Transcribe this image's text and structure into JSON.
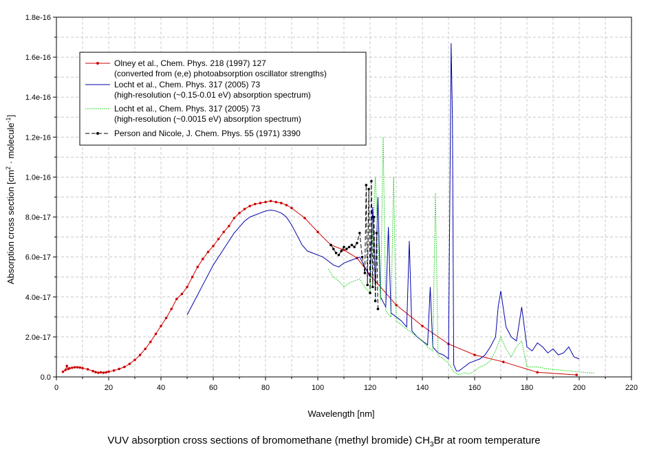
{
  "caption": {
    "prefix": "VUV absorption cross sections of bromomethane (methyl bromide) CH",
    "sub": "3",
    "suffix": "Br at room temperature"
  },
  "chart_data": {
    "type": "line",
    "xlabel": "Wavelength [nm]",
    "ylabel_main": "Absorption cross section [cm",
    "ylabel_sup1": "2",
    "ylabel_mid": " · molecule",
    "ylabel_sup2": "-1",
    "ylabel_end": "]",
    "xlim": [
      0,
      220
    ],
    "ylim": [
      0,
      1.8e-16
    ],
    "x_ticks": [
      0,
      20,
      40,
      60,
      80,
      100,
      120,
      140,
      160,
      180,
      200,
      220
    ],
    "x_tick_labels": [
      "0",
      "20",
      "40",
      "60",
      "80",
      "100",
      "120",
      "140",
      "160",
      "180",
      "200",
      "220"
    ],
    "y_ticks": [
      0,
      2e-17,
      4e-17,
      6e-17,
      8e-17,
      1e-16,
      1.2e-16,
      1.4e-16,
      1.6e-16,
      1.8e-16
    ],
    "y_tick_labels": [
      "0.0",
      "2.0e-17",
      "4.0e-17",
      "6.0e-17",
      "8.0e-17",
      "1.0e-16",
      "1.2e-16",
      "1.4e-16",
      "1.6e-16",
      "1.8e-16"
    ],
    "grid": true,
    "legend_position": "top-left",
    "series": [
      {
        "name": "Olney et al., Chem. Phys. 218 (1997) 127",
        "name2": "(converted from (e,e) photoabsorption oscillator strengths)",
        "color": "#cc0000",
        "style": "solid-markers",
        "x": [
          2.5,
          3.5,
          4,
          4.5,
          5,
          6,
          7,
          8,
          9,
          10,
          12,
          14,
          15,
          16,
          17,
          18,
          19,
          20,
          22,
          24,
          26,
          28,
          30,
          32,
          34,
          36,
          38,
          40,
          42,
          44,
          46,
          48,
          50,
          52,
          54,
          56,
          58,
          60,
          62,
          64,
          66,
          68,
          70,
          72,
          74,
          76,
          78,
          80,
          82,
          84,
          86,
          88,
          90,
          95,
          100,
          105,
          110,
          115,
          120,
          130,
          140,
          150,
          160,
          171,
          184,
          199
        ],
        "y": [
          2.6e-18,
          3.5e-18,
          5.5e-18,
          4e-18,
          4.3e-18,
          4.6e-18,
          4.8e-18,
          4.8e-18,
          4.7e-18,
          4.4e-18,
          3.8e-18,
          2.9e-18,
          2.4e-18,
          2.1e-18,
          2.3e-18,
          2.1e-18,
          2.3e-18,
          2.6e-18,
          3.2e-18,
          4e-18,
          5e-18,
          6.5e-18,
          8.5e-18,
          1.1e-17,
          1.4e-17,
          1.75e-17,
          2.15e-17,
          2.55e-17,
          2.95e-17,
          3.4e-17,
          3.9e-17,
          4.15e-17,
          4.5e-17,
          5e-17,
          5.5e-17,
          5.9e-17,
          6.25e-17,
          6.55e-17,
          6.9e-17,
          7.25e-17,
          7.55e-17,
          7.95e-17,
          8.2e-17,
          8.4e-17,
          8.55e-17,
          8.65e-17,
          8.7e-17,
          8.75e-17,
          8.8e-17,
          8.75e-17,
          8.7e-17,
          8.6e-17,
          8.45e-17,
          7.95e-17,
          7.25e-17,
          6.6e-17,
          6.35e-17,
          5.95e-17,
          5.1e-17,
          3.6e-17,
          2.55e-17,
          1.65e-17,
          1.1e-17,
          7.5e-18,
          2.3e-18,
          1e-18
        ]
      },
      {
        "name": "Locht et al., Chem. Phys. 317 (2005) 73",
        "name2": "(high-resolution (~0.15-0.01 eV) absorption spectrum)",
        "color": "#0000aa",
        "style": "solid",
        "x": [
          50,
          52,
          54,
          56,
          58,
          60,
          62,
          64,
          66,
          68,
          70,
          72,
          74,
          76,
          78,
          80,
          82,
          84,
          86,
          88,
          90,
          92,
          94,
          96,
          98,
          100,
          102,
          104,
          106,
          108,
          110,
          112,
          114,
          116,
          118,
          120,
          121,
          122,
          123,
          124,
          126,
          127,
          128,
          130,
          132,
          134,
          135,
          136,
          138,
          140,
          142,
          143,
          144,
          146,
          148,
          150,
          151,
          151.5,
          152,
          153,
          154,
          156,
          158,
          160,
          162,
          164,
          166,
          168,
          169,
          170,
          172,
          174,
          176,
          178,
          180,
          182,
          184,
          186,
          188,
          190,
          192,
          194,
          196,
          198,
          200
        ],
        "y": [
          3.1e-17,
          3.6e-17,
          4.1e-17,
          4.6e-17,
          5.1e-17,
          5.6e-17,
          6e-17,
          6.4e-17,
          6.8e-17,
          7.2e-17,
          7.5e-17,
          7.8e-17,
          8e-17,
          8.1e-17,
          8.2e-17,
          8.3e-17,
          8.35e-17,
          8.3e-17,
          8.2e-17,
          8e-17,
          7.6e-17,
          7.1e-17,
          6.6e-17,
          6.3e-17,
          6.2e-17,
          6.1e-17,
          6e-17,
          5.8e-17,
          5.6e-17,
          5.5e-17,
          5.7e-17,
          5.8e-17,
          5.9e-17,
          6e-17,
          5.5e-17,
          5e-17,
          8.5e-17,
          4.5e-17,
          9e-17,
          4e-17,
          3.5e-17,
          7.5e-17,
          3.2e-17,
          3e-17,
          2.8e-17,
          2.5e-17,
          6.8e-17,
          2.3e-17,
          2e-17,
          1.8e-17,
          1.6e-17,
          4.5e-17,
          1.5e-17,
          1.2e-17,
          1.1e-17,
          9e-18,
          1.67e-16,
          1.3e-16,
          6e-18,
          3e-18,
          3e-18,
          5e-18,
          7e-18,
          8e-18,
          9e-18,
          1.1e-17,
          1.5e-17,
          2e-17,
          3.5e-17,
          4.3e-17,
          2.5e-17,
          2e-17,
          1.8e-17,
          3.5e-17,
          1.5e-17,
          1.3e-17,
          1.7e-17,
          1.5e-17,
          1.2e-17,
          1.4e-17,
          1.1e-17,
          1.2e-17,
          1.5e-17,
          1e-17,
          9e-18
        ]
      },
      {
        "name": "Locht et al., Chem. Phys. 317 (2005) 73",
        "name2": "(high-resolution (~0.0015 eV) absorption spectrum)",
        "color": "#00cc00",
        "style": "dotted",
        "x": [
          104,
          106,
          108,
          110,
          112,
          114,
          116,
          118,
          120,
          122,
          124,
          125,
          126,
          128,
          129,
          130,
          132,
          134,
          136,
          138,
          140,
          142,
          144,
          145,
          146,
          148,
          150,
          152,
          154,
          156,
          158,
          160,
          162,
          164,
          166,
          168,
          170,
          172,
          174,
          176,
          178,
          180,
          184,
          188,
          192,
          196,
          200,
          204,
          206
        ],
        "y": [
          5.4e-17,
          5e-17,
          4.8e-17,
          4.5e-17,
          4.7e-17,
          4.8e-17,
          4.9e-17,
          4.5e-17,
          4.2e-17,
          1e-16,
          3.8e-17,
          1.2e-16,
          3.3e-17,
          3e-17,
          1e-16,
          2.8e-17,
          2.6e-17,
          2.4e-17,
          2.2e-17,
          2e-17,
          1.8e-17,
          1.5e-17,
          1.3e-17,
          9.2e-17,
          1.1e-17,
          9e-18,
          7e-18,
          2.5e-18,
          1e-18,
          2e-18,
          1.5e-18,
          3e-18,
          5e-18,
          6e-18,
          8e-18,
          1.3e-17,
          2e-17,
          1.4e-17,
          1e-17,
          1.5e-17,
          1.8e-17,
          5e-18,
          5e-18,
          4e-18,
          3.5e-18,
          3e-18,
          2.5e-18,
          2e-18,
          2e-18
        ]
      },
      {
        "name": "Person and Nicole, J. Chem. Phys. 55 (1971) 3390",
        "name2": "",
        "color": "#000000",
        "style": "dash-markers",
        "x": [
          105,
          106,
          107,
          108,
          109,
          110,
          111,
          112,
          113,
          114,
          115,
          116,
          117,
          118,
          118.5,
          119,
          119.5,
          120,
          120.5,
          121,
          121.5,
          122,
          122.5,
          123
        ],
        "y": [
          6.6e-17,
          6.4e-17,
          6.2e-17,
          6.1e-17,
          6.3e-17,
          6.5e-17,
          6.4e-17,
          6.5e-17,
          6.6e-17,
          6.5e-17,
          6.7e-17,
          7.2e-17,
          6e-17,
          5.2e-17,
          9.6e-17,
          4.6e-17,
          9.4e-17,
          4.2e-17,
          9.8e-17,
          4.5e-17,
          8e-17,
          3.8e-17,
          7.2e-17,
          3.4e-17
        ]
      }
    ]
  }
}
